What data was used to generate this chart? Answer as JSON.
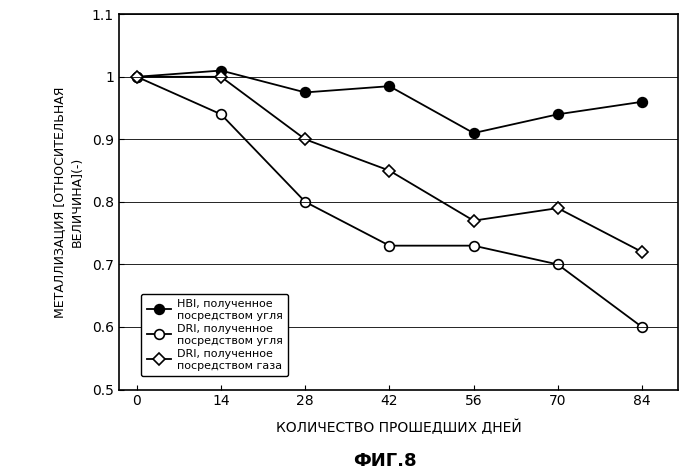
{
  "x_values": [
    0,
    14,
    28,
    42,
    56,
    70,
    84
  ],
  "series": [
    {
      "label": "HBI, полученное\nпосредством угля",
      "values": [
        1.0,
        1.01,
        0.975,
        0.985,
        0.91,
        0.94,
        0.96
      ],
      "marker": "o",
      "marker_face": "black",
      "marker_edge": "black",
      "line_color": "black",
      "marker_size": 7,
      "filled": true
    },
    {
      "label": "DRI, полученное\nпосредством угля",
      "values": [
        1.0,
        0.94,
        0.8,
        0.73,
        0.73,
        0.7,
        0.6
      ],
      "marker": "o",
      "marker_face": "white",
      "marker_edge": "black",
      "line_color": "black",
      "marker_size": 7,
      "filled": false
    },
    {
      "label": "DRI, полученное\nпосредством газа",
      "values": [
        1.0,
        1.0,
        0.9,
        0.85,
        0.77,
        0.79,
        0.72
      ],
      "marker": "D",
      "marker_face": "white",
      "marker_edge": "black",
      "line_color": "black",
      "marker_size": 6,
      "filled": false
    }
  ],
  "xlabel": "КОЛИЧЕСТВО ПРОШЕДШИХ ДНЕЙ",
  "ylabel": "МЕТАЛЛИЗАЦИЯ [ОТНОСИТЕЛЬНАЯ\nВЕЛИЧИНА](-)",
  "title": "ФИГ.8",
  "xlim": [
    -3,
    90
  ],
  "ylim": [
    0.5,
    1.1
  ],
  "yticks": [
    0.5,
    0.6,
    0.7,
    0.8,
    0.9,
    1.0,
    1.1
  ],
  "xticks": [
    0,
    14,
    28,
    42,
    56,
    70,
    84
  ],
  "background_color": "#ffffff"
}
